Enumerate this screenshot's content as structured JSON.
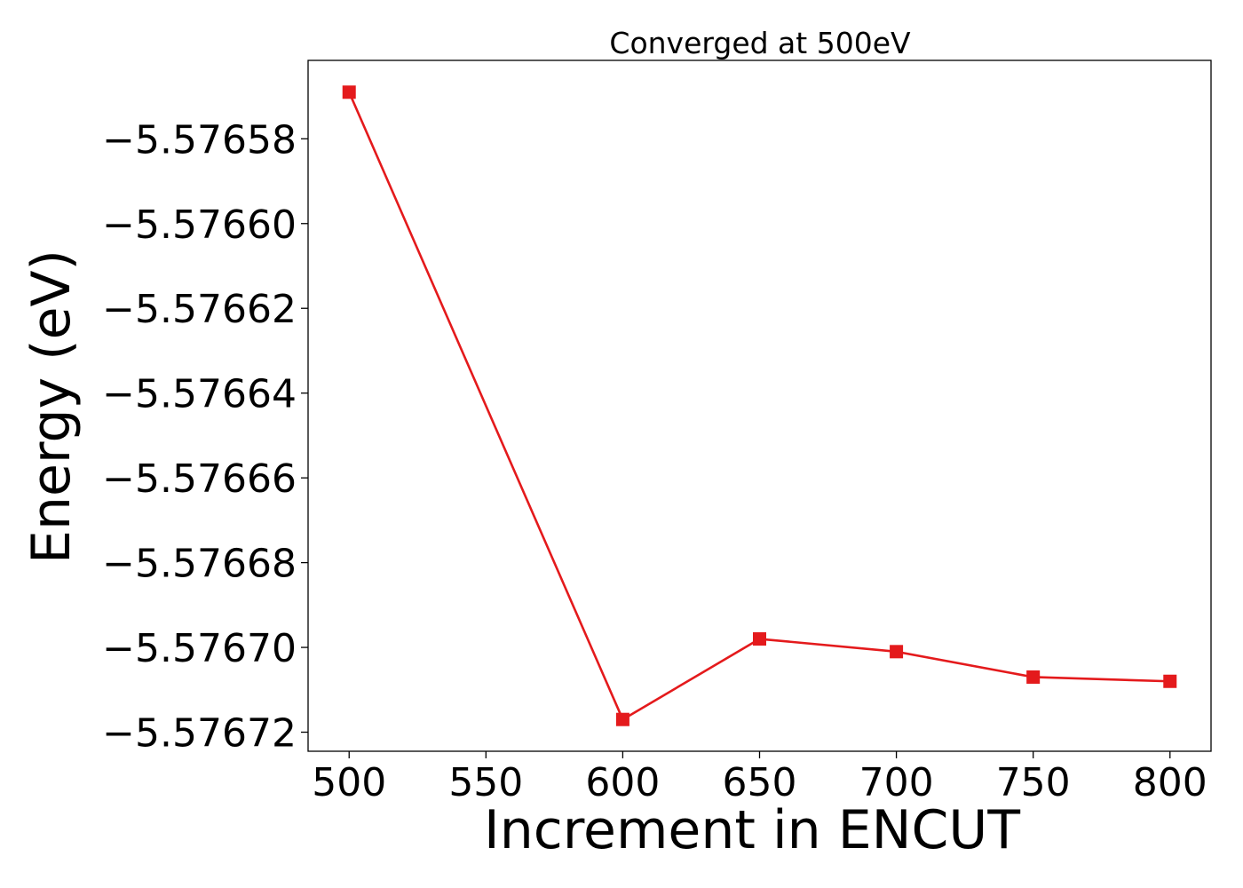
{
  "chart_data": {
    "type": "line",
    "title": "Converged at 500eV",
    "xlabel": "Increment in ENCUT",
    "ylabel": "Energy (eV)",
    "x": [
      500,
      600,
      650,
      700,
      750,
      800
    ],
    "series": [
      {
        "values": [
          -5.576569,
          -5.576717,
          -5.576698,
          -5.576701,
          -5.576707,
          -5.576708
        ],
        "color": "#e41a1c",
        "marker": "square"
      }
    ],
    "xlim": [
      485,
      815
    ],
    "ylim": [
      -5.5767245,
      -5.5765615
    ],
    "xticks": [
      500,
      550,
      600,
      650,
      700,
      750,
      800
    ],
    "xtick_labels": [
      "500",
      "550",
      "600",
      "650",
      "700",
      "750",
      "800"
    ],
    "yticks": [
      -5.57658,
      -5.5766,
      -5.57662,
      -5.57664,
      -5.57666,
      -5.57668,
      -5.5767,
      -5.57672
    ],
    "ytick_labels": [
      "−5.57658",
      "−5.57660",
      "−5.57662",
      "−5.57664",
      "−5.57666",
      "−5.57668",
      "−5.57670",
      "−5.57672"
    ],
    "grid": false,
    "legend": false
  }
}
